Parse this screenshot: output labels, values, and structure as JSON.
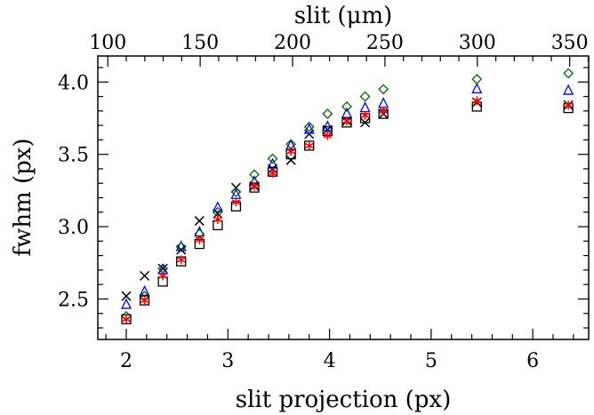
{
  "chart_data": {
    "type": "scatter",
    "xlabel": "slit projection (px)",
    "ylabel": "fwhm (px)",
    "top_xlabel": "slit (μm)",
    "xlim": [
      1.72,
      6.55
    ],
    "ylim": [
      2.22,
      4.18
    ],
    "x_ticks": [
      2,
      3,
      4,
      5,
      6
    ],
    "y_ticks": [
      2.5,
      3.0,
      3.5,
      4.0
    ],
    "y_tick_labels": [
      "2.5",
      "3.0",
      "3.5",
      "4.0"
    ],
    "top_ticks_um": [
      100,
      150,
      200,
      250,
      300,
      350
    ],
    "top_um_per_px": 55.0,
    "grid": false,
    "series": [
      {
        "marker": "cross",
        "color": "#000000",
        "points": [
          [
            2.0,
            2.52
          ],
          [
            2.18,
            2.66
          ],
          [
            2.36,
            2.71
          ],
          [
            2.54,
            2.84
          ],
          [
            2.72,
            3.04
          ],
          [
            2.9,
            3.09
          ],
          [
            3.08,
            3.27
          ],
          [
            3.26,
            3.28
          ],
          [
            3.44,
            3.4
          ],
          [
            3.62,
            3.46
          ],
          [
            3.8,
            3.64
          ],
          [
            3.98,
            3.67
          ],
          [
            4.17,
            3.73
          ],
          [
            4.35,
            3.72
          ],
          [
            4.53,
            3.78
          ],
          [
            5.45,
            3.86
          ],
          [
            6.35,
            3.84
          ]
        ]
      },
      {
        "marker": "triangle",
        "color": "#0000ff",
        "points": [
          [
            2.0,
            2.46
          ],
          [
            2.18,
            2.55
          ],
          [
            2.36,
            2.7
          ],
          [
            2.54,
            2.86
          ],
          [
            2.72,
            2.96
          ],
          [
            2.9,
            3.13
          ],
          [
            3.08,
            3.22
          ],
          [
            3.26,
            3.31
          ],
          [
            3.44,
            3.43
          ],
          [
            3.62,
            3.56
          ],
          [
            3.8,
            3.67
          ],
          [
            3.98,
            3.69
          ],
          [
            4.17,
            3.78
          ],
          [
            4.35,
            3.82
          ],
          [
            4.53,
            3.85
          ],
          [
            5.45,
            3.95
          ],
          [
            6.35,
            3.94
          ]
        ]
      },
      {
        "marker": "diamond",
        "color": "#006400",
        "points": [
          [
            2.0,
            2.38
          ],
          [
            2.18,
            2.52
          ],
          [
            2.36,
            2.71
          ],
          [
            2.54,
            2.86
          ],
          [
            2.72,
            2.95
          ],
          [
            2.9,
            3.1
          ],
          [
            3.08,
            3.24
          ],
          [
            3.26,
            3.36
          ],
          [
            3.44,
            3.47
          ],
          [
            3.62,
            3.57
          ],
          [
            3.8,
            3.69
          ],
          [
            3.98,
            3.78
          ],
          [
            4.17,
            3.83
          ],
          [
            4.35,
            3.9
          ],
          [
            4.53,
            3.95
          ],
          [
            5.45,
            4.02
          ],
          [
            6.35,
            4.06
          ]
        ]
      },
      {
        "marker": "square",
        "color": "#000000",
        "points": [
          [
            2.0,
            2.36
          ],
          [
            2.18,
            2.49
          ],
          [
            2.36,
            2.62
          ],
          [
            2.54,
            2.76
          ],
          [
            2.72,
            2.88
          ],
          [
            2.9,
            3.01
          ],
          [
            3.08,
            3.14
          ],
          [
            3.26,
            3.27
          ],
          [
            3.44,
            3.38
          ],
          [
            3.62,
            3.5
          ],
          [
            3.8,
            3.56
          ],
          [
            3.98,
            3.66
          ],
          [
            4.17,
            3.72
          ],
          [
            4.35,
            3.75
          ],
          [
            4.53,
            3.78
          ],
          [
            5.45,
            3.83
          ],
          [
            6.35,
            3.82
          ]
        ]
      },
      {
        "marker": "asterisk",
        "color": "#ff0000",
        "points": [
          [
            2.0,
            2.36
          ],
          [
            2.18,
            2.49
          ],
          [
            2.36,
            2.66
          ],
          [
            2.54,
            2.77
          ],
          [
            2.72,
            2.91
          ],
          [
            2.9,
            3.05
          ],
          [
            3.08,
            3.17
          ],
          [
            3.26,
            3.28
          ],
          [
            3.44,
            3.37
          ],
          [
            3.62,
            3.52
          ],
          [
            3.8,
            3.56
          ],
          [
            3.98,
            3.63
          ],
          [
            4.17,
            3.73
          ],
          [
            4.35,
            3.77
          ],
          [
            4.53,
            3.8
          ],
          [
            5.45,
            3.87
          ],
          [
            6.35,
            3.84
          ]
        ]
      }
    ]
  }
}
